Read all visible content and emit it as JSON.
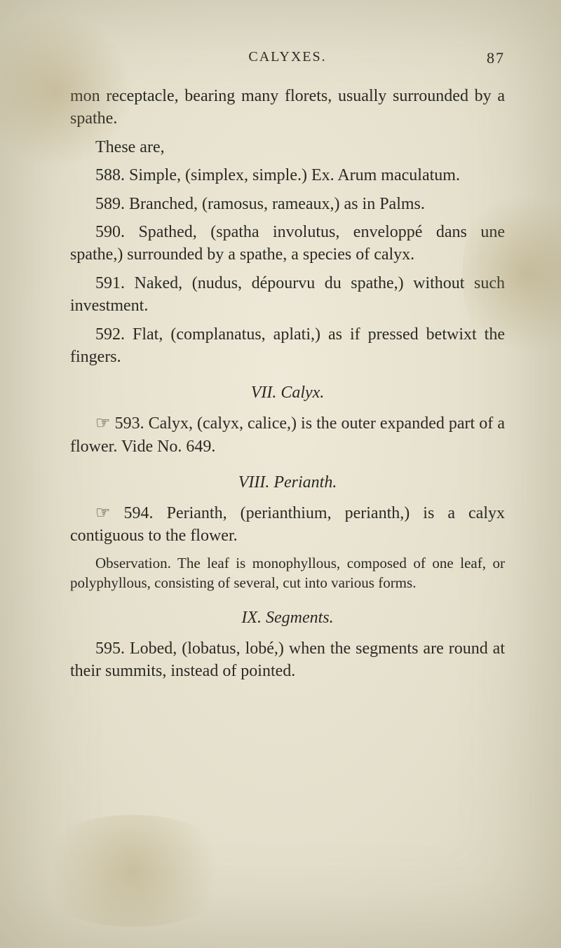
{
  "page": {
    "running_head": "CALYXES.",
    "page_number": "87",
    "intro": "mon receptacle, bearing many florets, usually surrounded by a spathe.",
    "these_are": "These are,",
    "p588": "588. Simple, (simplex, simple.) Ex. Arum maculatum.",
    "p589": "589. Branched, (ramosus, rameaux,) as in Palms.",
    "p590": "590. Spathed, (spatha involutus, enveloppé dans une spathe,) surrounded by a spathe, a species of calyx.",
    "p591": "591. Naked, (nudus, dépourvu du spathe,) without such investment.",
    "p592": "592. Flat, (complanatus, aplati,) as if pressed betwixt the fingers.",
    "sec7": "VII. Calyx.",
    "p593": "☞ 593. Calyx, (calyx, calice,) is the outer expanded part of a flower.  Vide No. 649.",
    "sec8": "VIII. Perianth.",
    "p594": "☞ 594. Perianth, (perianthium, perianth,) is a calyx contiguous to the flower.",
    "obs": "Observation. The leaf is monophyllous, composed of one leaf, or polyphyllous, consisting of several, cut into various forms.",
    "sec9": "IX. Segments.",
    "p595": "595. Lobed, (lobatus, lobé,) when the segments are round at their summits, instead of pointed."
  }
}
